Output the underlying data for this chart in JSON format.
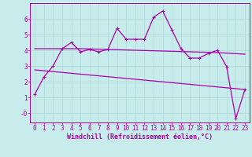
{
  "xlabel": "Windchill (Refroidissement éolien,°C)",
  "bg_color": "#c8ecec",
  "grid_color": "#b0d8d8",
  "line_color": "#aa00aa",
  "xlim": [
    -0.5,
    23.5
  ],
  "ylim": [
    -0.6,
    7.0
  ],
  "yticks": [
    0,
    1,
    2,
    3,
    4,
    5,
    6
  ],
  "ytick_labels": [
    "-0",
    "1",
    "2",
    "3",
    "4",
    "5",
    "6"
  ],
  "xticks": [
    0,
    1,
    2,
    3,
    4,
    5,
    6,
    7,
    8,
    9,
    10,
    11,
    12,
    13,
    14,
    15,
    16,
    17,
    18,
    19,
    20,
    21,
    22,
    23
  ],
  "line1_x": [
    0,
    1,
    2,
    3,
    4,
    5,
    6,
    7,
    8,
    9,
    10,
    11,
    12,
    13,
    14,
    15,
    16,
    17,
    18,
    19,
    20,
    21,
    22,
    23
  ],
  "line1_y": [
    1.2,
    2.3,
    3.0,
    4.1,
    4.5,
    3.9,
    4.05,
    3.9,
    4.05,
    5.4,
    4.7,
    4.7,
    4.7,
    6.1,
    6.5,
    5.3,
    4.1,
    3.5,
    3.5,
    3.8,
    4.0,
    2.95,
    -0.35,
    1.5
  ],
  "line2_x": [
    0,
    5,
    20,
    23
  ],
  "line2_y": [
    4.1,
    4.1,
    3.85,
    3.75
  ],
  "line3_x": [
    0,
    23
  ],
  "line3_y": [
    2.75,
    1.5
  ],
  "marker": "+",
  "markersize": 3,
  "linewidth": 0.9,
  "tick_fontsize": 5.5,
  "xlabel_fontsize": 6.0
}
